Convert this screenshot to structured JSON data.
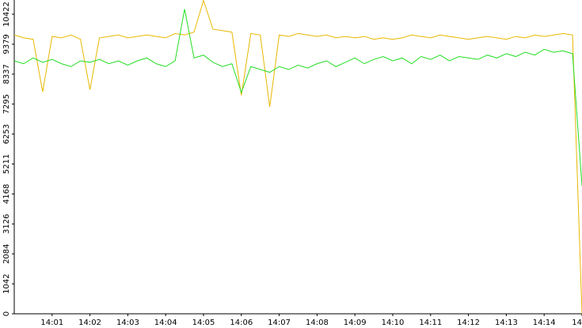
{
  "chart_data": {
    "type": "line",
    "x": [
      0,
      0.25,
      0.5,
      0.75,
      1,
      1.25,
      1.5,
      1.75,
      2,
      2.25,
      2.5,
      2.75,
      3,
      3.25,
      3.5,
      3.75,
      4,
      4.25,
      4.5,
      4.75,
      5,
      5.25,
      5.5,
      5.75,
      6,
      6.25,
      6.5,
      6.75,
      7,
      7.25,
      7.5,
      7.75,
      8,
      8.25,
      8.5,
      8.75,
      9,
      9.25,
      9.5,
      9.75,
      10,
      10.25,
      10.5,
      10.75,
      11,
      11.25,
      11.5,
      11.75,
      12,
      12.25,
      12.5,
      12.75,
      13,
      13.25,
      13.5,
      13.75,
      14,
      14.25,
      14.5,
      14.75,
      15
    ],
    "series": [
      {
        "color": "#e8b800",
        "values": [
          9700,
          9600,
          9550,
          7720,
          9650,
          9600,
          9700,
          9550,
          7800,
          9600,
          9650,
          9700,
          9600,
          9650,
          9700,
          9650,
          9600,
          9750,
          9700,
          9800,
          10900,
          9900,
          9850,
          9800,
          7600,
          9750,
          9700,
          7200,
          9700,
          9650,
          9750,
          9700,
          9650,
          9700,
          9600,
          9650,
          9600,
          9650,
          9550,
          9600,
          9550,
          9600,
          9700,
          9650,
          9600,
          9700,
          9650,
          9600,
          9550,
          9600,
          9650,
          9600,
          9550,
          9650,
          9600,
          9700,
          9650,
          9700,
          9750,
          9700,
          0
        ]
      },
      {
        "color": "#22dd22",
        "values": [
          8800,
          8700,
          8900,
          8750,
          8850,
          8700,
          8600,
          8800,
          8750,
          8850,
          8700,
          8800,
          8650,
          8800,
          8900,
          8700,
          8600,
          8800,
          10600,
          8900,
          9000,
          8750,
          8600,
          8700,
          7700,
          8600,
          8500,
          8400,
          8600,
          8500,
          8650,
          8550,
          8700,
          8800,
          8600,
          8750,
          8900,
          8700,
          8850,
          8950,
          8800,
          8900,
          8700,
          8950,
          8850,
          9000,
          8800,
          8950,
          8900,
          8850,
          9000,
          8900,
          9050,
          8950,
          9100,
          9000,
          9200,
          9100,
          9150,
          9050,
          4450
        ]
      }
    ],
    "xlim": [
      0,
      15
    ],
    "xticks": [
      {
        "value": 1,
        "label": "14:01"
      },
      {
        "value": 2,
        "label": "14:02"
      },
      {
        "value": 3,
        "label": "14:03"
      },
      {
        "value": 4,
        "label": "14:04"
      },
      {
        "value": 5,
        "label": "14:05"
      },
      {
        "value": 6,
        "label": "14:06"
      },
      {
        "value": 7,
        "label": "14:07"
      },
      {
        "value": 8,
        "label": "14:08"
      },
      {
        "value": 9,
        "label": "14:09"
      },
      {
        "value": 10,
        "label": "14:10"
      },
      {
        "value": 11,
        "label": "14:11"
      },
      {
        "value": 12,
        "label": "14:12"
      },
      {
        "value": 13,
        "label": "14:13"
      },
      {
        "value": 14,
        "label": "14:14"
      },
      {
        "value": 15,
        "label": "14"
      }
    ],
    "ylim": [
      0,
      10917
    ],
    "yticks": [
      0,
      1042,
      2084,
      3126,
      4168,
      5211,
      6253,
      7295,
      8337,
      9379,
      10422
    ]
  }
}
